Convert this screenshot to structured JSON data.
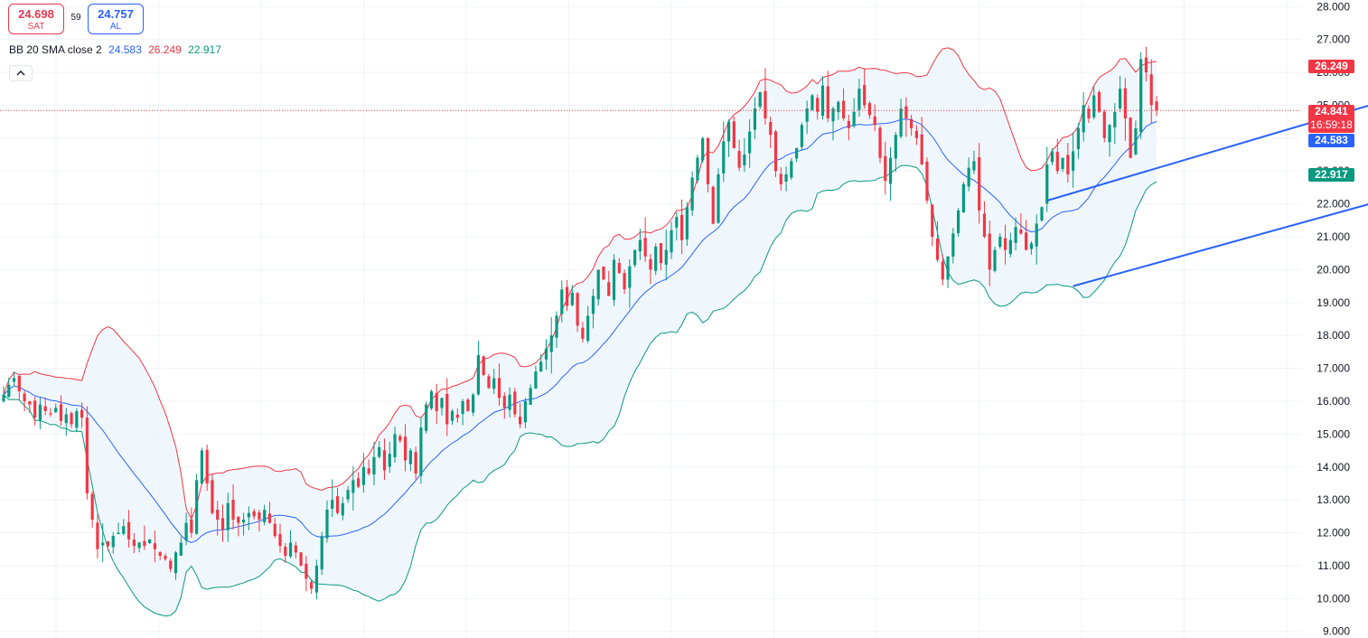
{
  "trade": {
    "sell_price": "24.698",
    "sell_label": "SAT",
    "buy_price": "24.757",
    "buy_label": "AL",
    "spread": "59"
  },
  "legend": {
    "name": "BB 20 SMA close 2",
    "basis": "24.583",
    "upper": "26.249",
    "lower": "22.917",
    "colors": {
      "basis": "#2962ff",
      "upper": "#f23645",
      "lower": "#089981"
    }
  },
  "tags": {
    "upper": {
      "value": "26.249",
      "color": "#f23645"
    },
    "last": {
      "value": "24.841",
      "countdown": "16:59:18",
      "color": "#f23645"
    },
    "basis": {
      "value": "24.583",
      "color": "#2962ff"
    },
    "lower": {
      "value": "22.917",
      "color": "#089981"
    }
  },
  "icons": {
    "collapse": "chevron-up-icon"
  },
  "chart_data": {
    "type": "candlestick",
    "indicator": "Bollinger Bands (20, SMA, close, 2)",
    "y_axis": {
      "ticks": [
        "28.000",
        "27.000",
        "26.000",
        "25.000",
        "24.000",
        "23.000",
        "22.000",
        "21.000",
        "20.000",
        "19.000",
        "18.000",
        "17.000",
        "16.000",
        "15.000",
        "14.000",
        "13.000",
        "12.000",
        "11.000",
        "10.000",
        "9.000"
      ],
      "range": [
        8.8,
        28.2
      ],
      "position": "right"
    },
    "colors": {
      "up": "#089981",
      "down": "#f23645",
      "band_fill": "#eaf3fb"
    },
    "grid": true,
    "last_price": 24.841,
    "close_path": [
      16.2,
      16.5,
      16.7,
      16.3,
      16.0,
      15.9,
      15.5,
      15.9,
      15.7,
      15.6,
      15.8,
      15.4,
      15.6,
      15.3,
      15.7,
      15.5,
      13.2,
      12.4,
      11.5,
      11.7,
      11.6,
      11.9,
      12.0,
      12.2,
      11.8,
      11.6,
      11.7,
      11.6,
      11.8,
      11.5,
      11.3,
      11.2,
      10.9,
      11.4,
      11.7,
      12.3,
      12.0,
      13.6,
      14.5,
      13.5,
      12.6,
      12.4,
      12.1,
      12.9,
      12.4,
      12.3,
      12.4,
      12.6,
      12.5,
      12.4,
      12.7,
      12.3,
      11.9,
      11.6,
      11.3,
      11.7,
      11.4,
      11.0,
      10.6,
      10.3,
      11.0,
      11.9,
      12.7,
      13.0,
      12.6,
      12.9,
      13.3,
      13.6,
      13.4,
      14.0,
      13.8,
      14.3,
      14.6,
      13.9,
      14.4,
      15.0,
      14.8,
      14.2,
      14.5,
      13.8,
      15.2,
      15.9,
      16.3,
      15.7,
      16.1,
      15.3,
      15.7,
      15.5,
      16.0,
      15.7,
      16.2,
      17.4,
      16.8,
      16.4,
      16.7,
      16.1,
      15.8,
      16.2,
      15.6,
      15.3,
      16.0,
      16.4,
      16.9,
      17.2,
      17.6,
      18.0,
      18.6,
      19.4,
      18.9,
      19.3,
      18.3,
      17.9,
      18.6,
      19.2,
      20.0,
      19.7,
      19.2,
      20.3,
      19.9,
      19.4,
      20.1,
      20.6,
      20.9,
      20.4,
      20.0,
      20.7,
      20.2,
      20.6,
      21.2,
      21.6,
      20.9,
      21.9,
      22.8,
      23.4,
      24.0,
      22.6,
      21.4,
      22.9,
      23.9,
      24.5,
      23.7,
      23.1,
      23.5,
      24.2,
      24.9,
      25.4,
      24.6,
      24.1,
      23.0,
      22.6,
      22.9,
      23.3,
      23.7,
      24.4,
      24.9,
      25.3,
      24.8,
      25.6,
      24.6,
      24.9,
      25.1,
      24.6,
      24.3,
      24.8,
      25.5,
      25.0,
      24.7,
      24.4,
      23.4,
      22.7,
      23.4,
      24.1,
      24.9,
      24.6,
      24.3,
      24.0,
      23.2,
      22.1,
      21.0,
      20.3,
      19.7,
      20.4,
      21.1,
      21.8,
      22.6,
      23.1,
      23.3,
      21.8,
      21.0,
      20.0,
      20.6,
      21.0,
      20.6,
      20.9,
      21.3,
      21.1,
      20.6,
      20.8,
      21.4,
      21.9,
      23.2,
      23.6,
      23.0,
      23.4,
      22.9,
      23.6,
      24.3,
      25.0,
      24.6,
      25.3,
      24.8,
      24.0,
      24.4,
      24.8,
      25.5,
      24.6,
      23.4,
      24.3,
      26.4,
      26.0,
      25.0,
      24.841
    ]
  }
}
